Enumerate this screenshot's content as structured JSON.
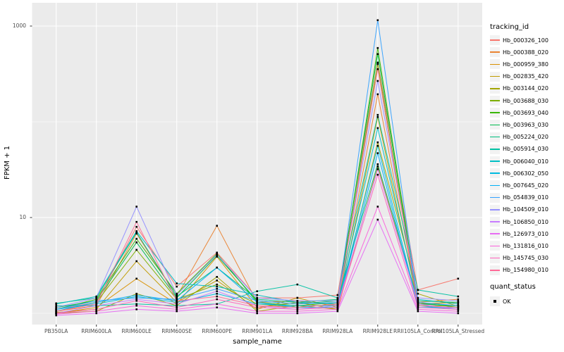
{
  "chart_data": {
    "type": "line",
    "title": "",
    "xlabel": "sample_name",
    "ylabel": "FPKM + 1",
    "y_scale": "log10",
    "ylim": [
      0.8,
      1400
    ],
    "grid": "on",
    "legend_position": "right",
    "panel_bg": "#EBEBEB",
    "grid_color": "#FFFFFF",
    "point_color": "#000000",
    "point_shape": "square",
    "y_axis_ticks": [
      {
        "label": "1000",
        "value": 1000
      },
      {
        "label": "10",
        "value": 10
      }
    ],
    "y_minor_gridlines": [
      1,
      100
    ],
    "categories": [
      "PB350LA",
      "RRIM600LA",
      "RRIM600LE",
      "RRIM600SE",
      "RRIM600PE",
      "RRIM901LA",
      "RRIM928BA",
      "RRIM928LA",
      "RRIM928LE",
      "RRII105LA_Control",
      "RRII105LA_Stressed"
    ],
    "series": [
      {
        "name": "Hb_000326_100",
        "color": "#F8766D",
        "values": [
          1.1,
          1.3,
          8.0,
          1.9,
          4.3,
          1.45,
          1.45,
          1.55,
          415,
          1.75,
          2.3
        ]
      },
      {
        "name": "Hb_000388_020",
        "color": "#EA8331",
        "values": [
          1.05,
          1.2,
          6.8,
          1.5,
          8.2,
          1.3,
          1.35,
          1.2,
          194,
          1.3,
          1.4
        ]
      },
      {
        "name": "Hb_000959_380",
        "color": "#D89000",
        "values": [
          1.0,
          1.15,
          2.3,
          1.25,
          3.9,
          1.15,
          1.3,
          1.1,
          34,
          1.25,
          1.3
        ]
      },
      {
        "name": "Hb_002835_420",
        "color": "#C09B00",
        "values": [
          1.02,
          1.1,
          3.5,
          1.3,
          2.2,
          1.1,
          1.45,
          1.15,
          112,
          1.25,
          1.3
        ]
      },
      {
        "name": "Hb_003144_020",
        "color": "#A3A500",
        "values": [
          1.0,
          1.05,
          1.6,
          1.2,
          2.4,
          1.05,
          1.2,
          1.1,
          61,
          1.6,
          1.18
        ]
      },
      {
        "name": "Hb_003688_030",
        "color": "#7CAE00",
        "values": [
          1.05,
          1.3,
          4.6,
          1.4,
          2.0,
          1.25,
          1.15,
          1.25,
          400,
          1.2,
          1.2
        ]
      },
      {
        "name": "Hb_003693_040",
        "color": "#39B600",
        "values": [
          1.1,
          1.4,
          6.0,
          1.6,
          4.2,
          1.3,
          1.2,
          1.3,
          590,
          1.3,
          1.15
        ]
      },
      {
        "name": "Hb_003963_030",
        "color": "#00BB4E",
        "values": [
          1.15,
          1.35,
          5.5,
          1.45,
          4.0,
          1.35,
          1.25,
          1.35,
          510,
          1.25,
          1.2
        ]
      },
      {
        "name": "Hb_005224_020",
        "color": "#00BF7D",
        "values": [
          1.27,
          1.45,
          7.0,
          1.5,
          3.0,
          1.4,
          1.3,
          1.4,
          36,
          1.35,
          1.3
        ]
      },
      {
        "name": "Hb_005914_030",
        "color": "#00C1A3",
        "values": [
          1.2,
          1.2,
          1.25,
          1.2,
          1.25,
          1.7,
          2.0,
          1.45,
          118,
          1.75,
          1.5
        ]
      },
      {
        "name": "Hb_006040_010",
        "color": "#00BFC4",
        "values": [
          1.25,
          1.5,
          7.2,
          2.05,
          1.9,
          1.55,
          1.3,
          1.25,
          86,
          1.4,
          1.25
        ]
      },
      {
        "name": "Hb_006302_050",
        "color": "#00BAE0",
        "values": [
          1.1,
          1.25,
          1.5,
          1.3,
          1.6,
          1.25,
          1.2,
          1.2,
          56,
          1.2,
          1.1
        ]
      },
      {
        "name": "Hb_007645_020",
        "color": "#00B0F6",
        "values": [
          1.05,
          1.3,
          1.55,
          1.35,
          3.0,
          1.3,
          1.15,
          1.15,
          47,
          1.15,
          1.15
        ]
      },
      {
        "name": "Hb_054839_010",
        "color": "#35A2FF",
        "values": [
          1.1,
          1.35,
          1.45,
          1.4,
          1.8,
          1.35,
          1.25,
          1.3,
          1150,
          1.3,
          1.2
        ]
      },
      {
        "name": "Hb_104509_010",
        "color": "#9590FF",
        "values": [
          1.15,
          1.45,
          13.0,
          1.55,
          4.1,
          1.45,
          1.35,
          1.35,
          267,
          1.45,
          1.35
        ]
      },
      {
        "name": "Hb_106850_010",
        "color": "#C77CFF",
        "values": [
          1.0,
          1.2,
          1.4,
          1.25,
          1.7,
          1.2,
          1.1,
          1.2,
          32,
          1.25,
          1.1
        ]
      },
      {
        "name": "Hb_126973_010",
        "color": "#E76BF3",
        "values": [
          0.95,
          1.0,
          1.1,
          1.05,
          1.15,
          1.0,
          1.0,
          1.05,
          9.5,
          1.05,
          1.0
        ]
      },
      {
        "name": "Hb_131816_010",
        "color": "#FA62DB",
        "values": [
          0.98,
          1.05,
          1.2,
          1.1,
          1.25,
          1.05,
          1.05,
          1.1,
          13,
          1.1,
          1.05
        ]
      },
      {
        "name": "Hb_145745_030",
        "color": "#FF62BC",
        "values": [
          1.0,
          1.1,
          1.35,
          1.15,
          1.4,
          1.15,
          1.1,
          1.15,
          28,
          1.15,
          1.1
        ]
      },
      {
        "name": "Hb_154980_010",
        "color": "#FF6A98",
        "values": [
          1.05,
          1.25,
          9.0,
          1.35,
          1.5,
          1.2,
          1.15,
          1.25,
          355,
          1.2,
          1.15
        ]
      }
    ]
  },
  "legend": {
    "tracking_title": "tracking_id",
    "quant_title": "quant_status",
    "quant_items": [
      {
        "label": "OK",
        "color": "#000000"
      }
    ]
  }
}
